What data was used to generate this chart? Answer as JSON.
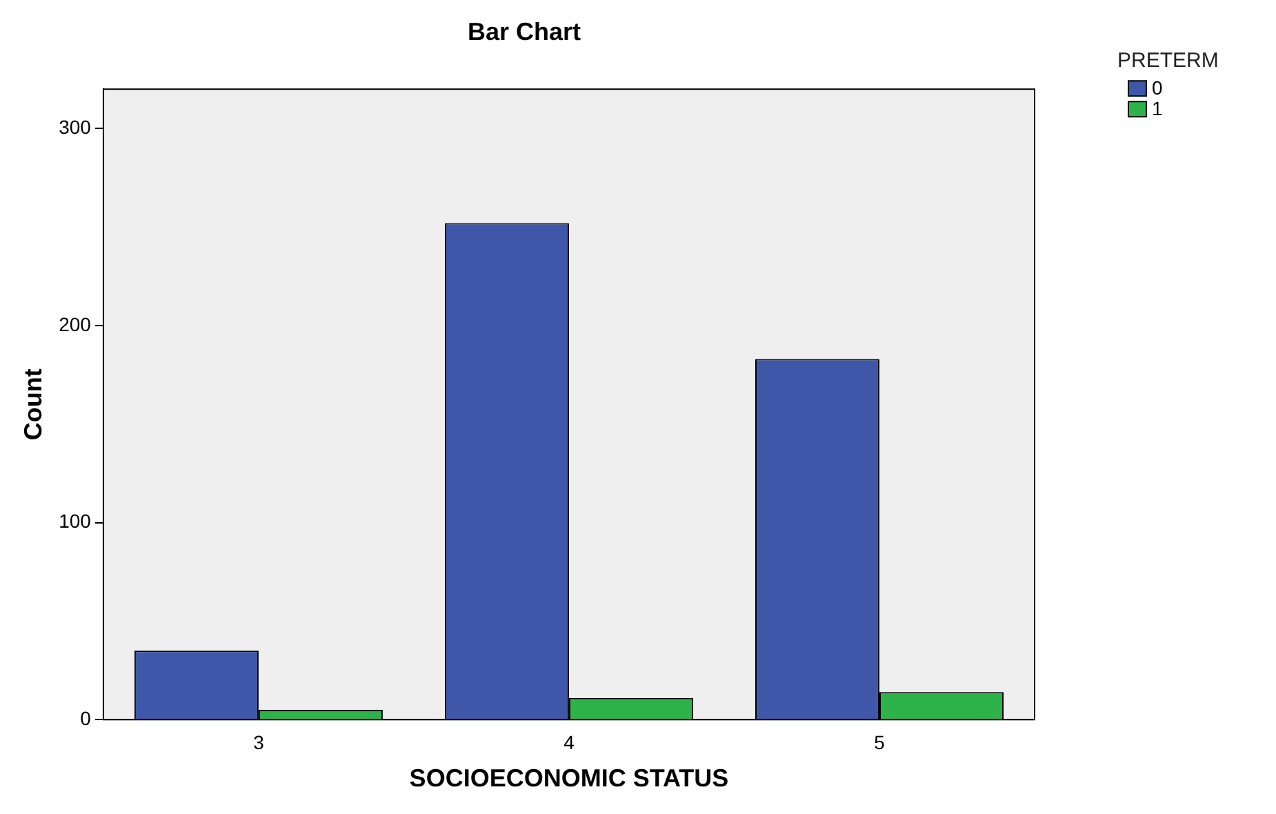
{
  "chart_data": {
    "type": "bar",
    "title": "Bar Chart",
    "xlabel": "SOCIOECONOMIC STATUS",
    "ylabel": "Count",
    "legend_title": "PRETERM",
    "categories": [
      "3",
      "4",
      "5"
    ],
    "series": [
      {
        "name": "0",
        "color": "#3f57a9",
        "values": [
          35,
          252,
          183
        ]
      },
      {
        "name": "1",
        "color": "#2db34a",
        "values": [
          5,
          11,
          14
        ]
      }
    ],
    "ylim": [
      0,
      320
    ],
    "yticks": [
      0,
      100,
      200,
      300
    ],
    "grid": false,
    "legend": "top right"
  }
}
